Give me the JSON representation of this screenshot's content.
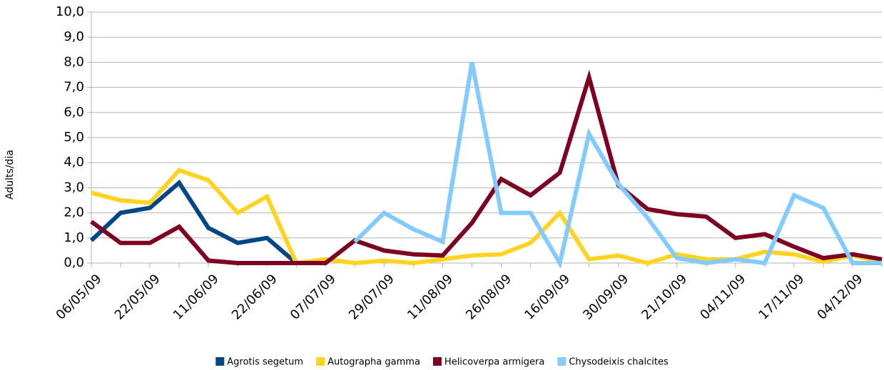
{
  "chart_data": {
    "type": "line",
    "ylabel": "Adults/dia",
    "categories": [
      "06/05/09",
      null,
      "22/05/09",
      null,
      "11/06/09",
      null,
      "22/06/09",
      null,
      "07/07/09",
      null,
      "29/07/09",
      null,
      "11/08/09",
      null,
      "26/08/09",
      null,
      "16/09/09",
      null,
      "30/09/09",
      null,
      "21/10/09",
      null,
      "04/11/09",
      null,
      "17/11/09",
      null,
      "04/12/09",
      null
    ],
    "series": [
      {
        "name": "Agrotis  segetum",
        "color": "#004586",
        "values": [
          0.9,
          2.0,
          2.2,
          3.2,
          1.4,
          0.8,
          1.0,
          0.0,
          null,
          null,
          null,
          null,
          null,
          null,
          null,
          null,
          null,
          null,
          null,
          null,
          null,
          null,
          null,
          null,
          null,
          null,
          null,
          null
        ]
      },
      {
        "name": "Autographa gamma",
        "color": "#ffd320",
        "values": [
          2.8,
          2.5,
          2.4,
          3.7,
          3.3,
          2.0,
          2.65,
          0.0,
          0.15,
          0.0,
          0.1,
          0.0,
          0.15,
          0.3,
          0.35,
          0.8,
          2.0,
          0.15,
          0.3,
          0.0,
          0.35,
          0.15,
          0.15,
          0.45,
          0.35,
          0.05,
          0.3,
          0.05
        ]
      },
      {
        "name": "Helicoverpa armigera",
        "color": "#7e0021",
        "values": [
          1.65,
          0.8,
          0.8,
          1.45,
          0.1,
          0.0,
          0.0,
          0.0,
          0.0,
          0.9,
          0.5,
          0.35,
          0.3,
          1.6,
          3.35,
          2.7,
          3.6,
          7.4,
          3.1,
          2.15,
          1.95,
          1.85,
          1.0,
          1.15,
          0.65,
          0.2,
          0.35,
          0.15
        ]
      },
      {
        "name": "Chysodeixis chalcites",
        "color": "#83caff",
        "values": [
          null,
          null,
          null,
          null,
          null,
          null,
          null,
          null,
          null,
          0.85,
          2.0,
          1.35,
          0.85,
          8.0,
          2.0,
          2.0,
          0.0,
          5.15,
          3.15,
          1.8,
          0.2,
          0.0,
          0.15,
          0.0,
          2.7,
          2.2,
          0.0,
          0.0
        ]
      }
    ],
    "ylim": [
      0,
      10
    ],
    "yticks": [
      {
        "value": 0,
        "label": "0,0"
      },
      {
        "value": 1,
        "label": "1,0"
      },
      {
        "value": 2,
        "label": "2,0"
      },
      {
        "value": 3,
        "label": "3,0"
      },
      {
        "value": 4,
        "label": "4,0"
      },
      {
        "value": 5,
        "label": "5,0"
      },
      {
        "value": 6,
        "label": "6,0"
      },
      {
        "value": 7,
        "label": "7,0"
      },
      {
        "value": 8,
        "label": "8,0"
      },
      {
        "value": 9,
        "label": "9,0"
      },
      {
        "value": 10,
        "label": "10,0"
      }
    ],
    "grid": true,
    "legend": "bottom"
  }
}
